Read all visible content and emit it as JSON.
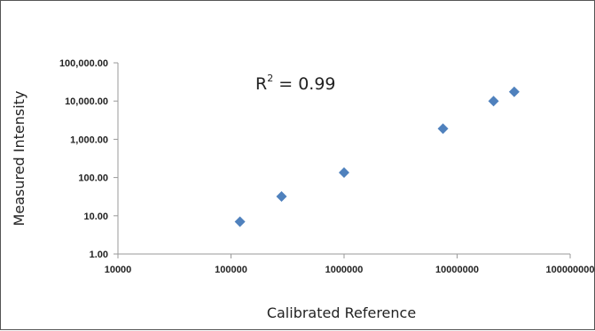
{
  "chart_data": {
    "type": "scatter",
    "xlabel": "Calibrated Reference",
    "ylabel": "Measured Intensity",
    "x_scale": "log",
    "y_scale": "log",
    "xlim": [
      10000,
      100000000
    ],
    "ylim": [
      1,
      100000
    ],
    "x_tick_labels": [
      "10000",
      "100000",
      "1000000",
      "10000000",
      "100000000"
    ],
    "y_tick_labels": [
      "1.00",
      "10.00",
      "100.00",
      "1,000.00",
      "10,000.00",
      "100,000.00"
    ],
    "grid": "none",
    "legend": "none",
    "annotation": {
      "text": "R",
      "superscript": "2",
      "suffix": " = 0.99"
    },
    "marker_color": "#4F81BD",
    "points": [
      {
        "x": 120000,
        "y": 7
      },
      {
        "x": 280000,
        "y": 32
      },
      {
        "x": 1000000,
        "y": 135
      },
      {
        "x": 7500000,
        "y": 1900
      },
      {
        "x": 21000000,
        "y": 10000
      },
      {
        "x": 32000000,
        "y": 17500
      }
    ]
  }
}
